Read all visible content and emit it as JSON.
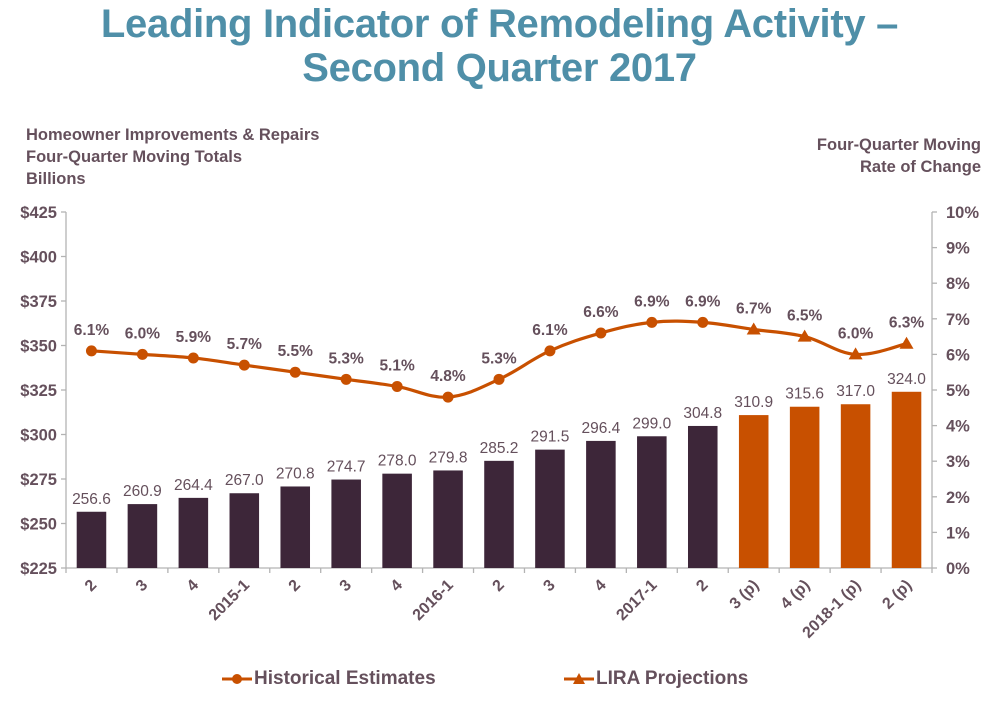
{
  "title_line1": "Leading Indicator of Remodeling Activity –",
  "title_line2": "Second Quarter 2017",
  "left_axis_title": [
    "Homeowner Improvements & Repairs",
    "Four-Quarter Moving Totals",
    "Billions"
  ],
  "right_axis_title": [
    "Four-Quarter Moving",
    "Rate of Change"
  ],
  "colors": {
    "title": "#4f8fa8",
    "text": "#65505c",
    "historical_bar": "#3d2639",
    "projection_bar": "#c85000",
    "line": "#c85000",
    "axis": "#b3b3b3"
  },
  "legend": [
    {
      "label": "Historical Estimates",
      "marker": "circle"
    },
    {
      "label": "LIRA Projections",
      "marker": "triangle"
    }
  ],
  "chart_data": {
    "type": "bar+line",
    "title": "Leading Indicator of Remodeling Activity – Second Quarter 2017",
    "categories": [
      "2",
      "3",
      "4",
      "2015-1",
      "2",
      "3",
      "4",
      "2016-1",
      "2",
      "3",
      "4",
      "2017-1",
      "2",
      "3 (p)",
      "4 (p)",
      "2018-1 (p)",
      "2 (p)"
    ],
    "series": [
      {
        "name": "Homeowner Improvements & Repairs (Billions)",
        "type": "bar",
        "axis": "left",
        "values": [
          256.6,
          260.9,
          264.4,
          267.0,
          270.8,
          274.7,
          278.0,
          279.8,
          285.2,
          291.5,
          296.4,
          299.0,
          304.8,
          310.9,
          315.6,
          317.0,
          324.0
        ],
        "labels": [
          "256.6",
          "260.9",
          "264.4",
          "267.0",
          "270.8",
          "274.7",
          "278.0",
          "279.8",
          "285.2",
          "291.5",
          "296.4",
          "299.0",
          "304.8",
          "310.9",
          "315.6",
          "317.0",
          "324.0"
        ],
        "kind": [
          "historical",
          "historical",
          "historical",
          "historical",
          "historical",
          "historical",
          "historical",
          "historical",
          "historical",
          "historical",
          "historical",
          "historical",
          "historical",
          "projection",
          "projection",
          "projection",
          "projection"
        ]
      },
      {
        "name": "Four-Quarter Moving Rate of Change",
        "type": "line",
        "axis": "right",
        "values": [
          6.1,
          6.0,
          5.9,
          5.7,
          5.5,
          5.3,
          5.1,
          4.8,
          5.3,
          6.1,
          6.6,
          6.9,
          6.9,
          6.7,
          6.5,
          6.0,
          6.3
        ],
        "labels": [
          "6.1%",
          "6.0%",
          "5.9%",
          "5.7%",
          "5.5%",
          "5.3%",
          "5.1%",
          "4.8%",
          "5.3%",
          "6.1%",
          "6.6%",
          "6.9%",
          "6.9%",
          "6.7%",
          "6.5%",
          "6.0%",
          "6.3%"
        ],
        "markers": [
          "circle",
          "circle",
          "circle",
          "circle",
          "circle",
          "circle",
          "circle",
          "circle",
          "circle",
          "circle",
          "circle",
          "circle",
          "circle",
          "triangle",
          "triangle",
          "triangle",
          "triangle"
        ]
      }
    ],
    "left_axis": {
      "ylim": [
        225,
        425
      ],
      "ticks": [
        "$425",
        "$400",
        "$375",
        "$350",
        "$325",
        "$300",
        "$275",
        "$250",
        "$225"
      ],
      "tick_values": [
        425,
        400,
        375,
        350,
        325,
        300,
        275,
        250,
        225
      ]
    },
    "right_axis": {
      "ylim": [
        0,
        10
      ],
      "ticks": [
        "10%",
        "9%",
        "8%",
        "7%",
        "6%",
        "5%",
        "4%",
        "3%",
        "2%",
        "1%",
        "0%"
      ],
      "tick_values": [
        10,
        9,
        8,
        7,
        6,
        5,
        4,
        3,
        2,
        1,
        0
      ]
    },
    "grid": false,
    "legend_position": "bottom"
  }
}
